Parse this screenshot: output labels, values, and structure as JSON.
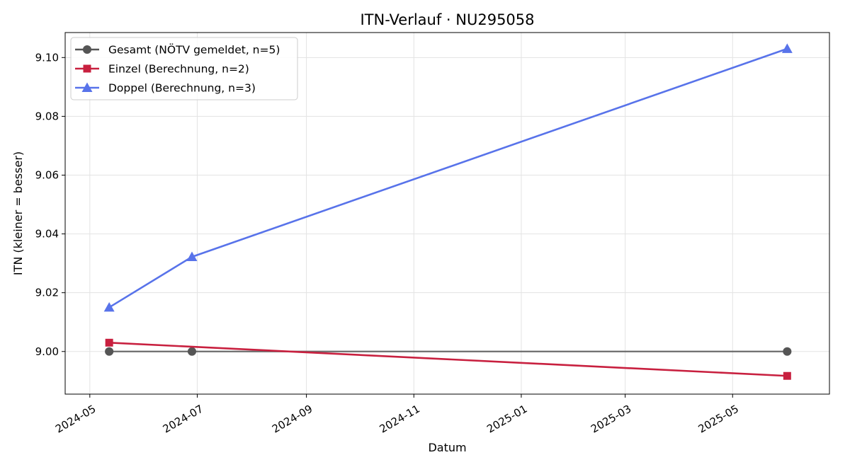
{
  "chart_data": {
    "type": "line",
    "title": "ITN-Verlauf · NU295058",
    "xlabel": "Datum",
    "ylabel": "ITN  (kleiner = besser)",
    "x_scale": "date",
    "xlim": [
      "2024-04-17",
      "2025-06-25"
    ],
    "ylim": [
      8.9855,
      9.1085
    ],
    "x_ticks": [
      "2024-05-01",
      "2024-07-01",
      "2024-09-01",
      "2024-11-01",
      "2025-01-01",
      "2025-03-01",
      "2025-05-01"
    ],
    "x_tick_labels": [
      "2024-05",
      "2024-07",
      "2024-09",
      "2024-11",
      "2025-01",
      "2025-03",
      "2025-05"
    ],
    "y_ticks": [
      9.0,
      9.02,
      9.04,
      9.06,
      9.08,
      9.1
    ],
    "y_tick_labels": [
      "9.00",
      "9.02",
      "9.04",
      "9.06",
      "9.08",
      "9.10"
    ],
    "grid": true,
    "legend_position": "top-left",
    "series": [
      {
        "name": "Gesamt (NÖTV gemeldet, n=5)",
        "color": "#555555",
        "marker": "circle",
        "points": [
          {
            "x": "2024-05-12",
            "y": 9.0
          },
          {
            "x": "2024-06-28",
            "y": 9.0
          },
          {
            "x": "2025-06-01",
            "y": 9.0
          }
        ]
      },
      {
        "name": "Einzel (Berechnung, n=2)",
        "color": "#c8203f",
        "marker": "square",
        "points": [
          {
            "x": "2024-05-12",
            "y": 9.003
          },
          {
            "x": "2025-06-01",
            "y": 8.9917
          }
        ]
      },
      {
        "name": "Doppel (Berechnung, n=3)",
        "color": "#5873ea",
        "marker": "triangle",
        "points": [
          {
            "x": "2024-05-12",
            "y": 9.015
          },
          {
            "x": "2024-06-28",
            "y": 9.0322
          },
          {
            "x": "2025-06-01",
            "y": 9.103
          }
        ]
      }
    ]
  }
}
